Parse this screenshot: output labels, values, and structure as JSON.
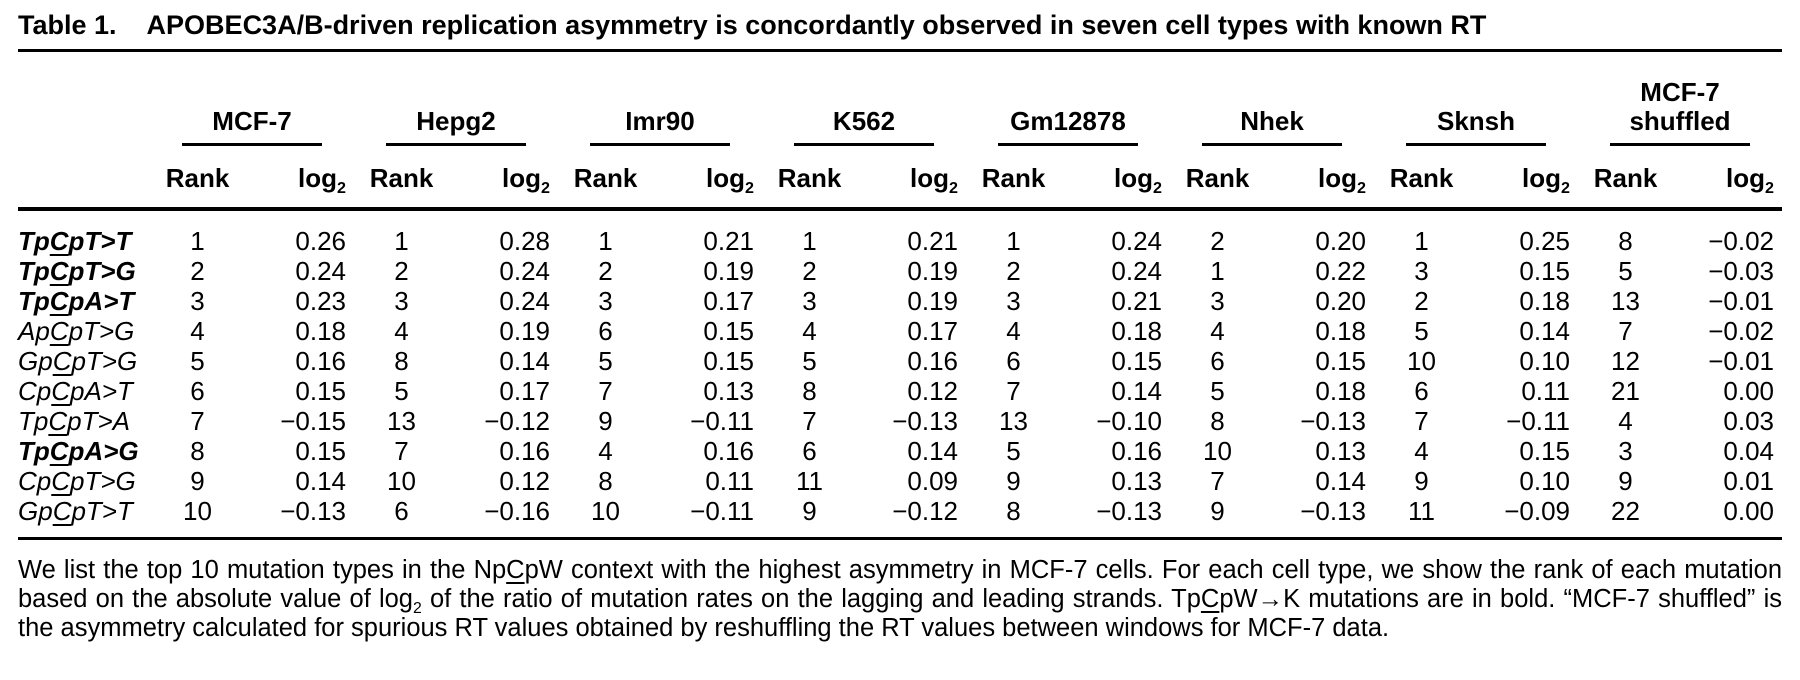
{
  "title": {
    "label": "Table 1.",
    "text": "APOBEC3A/B-driven replication asymmetry is concordantly observed in seven cell types with known RT"
  },
  "table": {
    "groups": [
      {
        "name": "MCF-7"
      },
      {
        "name": "Hepg2"
      },
      {
        "name": "Imr90"
      },
      {
        "name": "K562"
      },
      {
        "name": "Gm12878"
      },
      {
        "name": "Nhek"
      },
      {
        "name": "Sknsh"
      },
      {
        "name": "MCF-7\nshuffled"
      }
    ],
    "subheaders": {
      "rank": "Rank",
      "log_base": "log",
      "log_sub": "2"
    },
    "rows": [
      {
        "bold": true,
        "label": {
          "pre": "Tp",
          "c": "C",
          "post": "pT>T"
        },
        "cells": [
          {
            "rank": "1",
            "log2": "0.26"
          },
          {
            "rank": "1",
            "log2": "0.28"
          },
          {
            "rank": "1",
            "log2": "0.21"
          },
          {
            "rank": "1",
            "log2": "0.21"
          },
          {
            "rank": "1",
            "log2": "0.24"
          },
          {
            "rank": "2",
            "log2": "0.20"
          },
          {
            "rank": "1",
            "log2": "0.25"
          },
          {
            "rank": "8",
            "log2": "−0.02"
          }
        ]
      },
      {
        "bold": true,
        "label": {
          "pre": "Tp",
          "c": "C",
          "post": "pT>G"
        },
        "cells": [
          {
            "rank": "2",
            "log2": "0.24"
          },
          {
            "rank": "2",
            "log2": "0.24"
          },
          {
            "rank": "2",
            "log2": "0.19"
          },
          {
            "rank": "2",
            "log2": "0.19"
          },
          {
            "rank": "2",
            "log2": "0.24"
          },
          {
            "rank": "1",
            "log2": "0.22"
          },
          {
            "rank": "3",
            "log2": "0.15"
          },
          {
            "rank": "5",
            "log2": "−0.03"
          }
        ]
      },
      {
        "bold": true,
        "label": {
          "pre": "Tp",
          "c": "C",
          "post": "pA>T"
        },
        "cells": [
          {
            "rank": "3",
            "log2": "0.23"
          },
          {
            "rank": "3",
            "log2": "0.24"
          },
          {
            "rank": "3",
            "log2": "0.17"
          },
          {
            "rank": "3",
            "log2": "0.19"
          },
          {
            "rank": "3",
            "log2": "0.21"
          },
          {
            "rank": "3",
            "log2": "0.20"
          },
          {
            "rank": "2",
            "log2": "0.18"
          },
          {
            "rank": "13",
            "log2": "−0.01"
          }
        ]
      },
      {
        "bold": false,
        "label": {
          "pre": "Ap",
          "c": "C",
          "post": "pT>G"
        },
        "cells": [
          {
            "rank": "4",
            "log2": "0.18"
          },
          {
            "rank": "4",
            "log2": "0.19"
          },
          {
            "rank": "6",
            "log2": "0.15"
          },
          {
            "rank": "4",
            "log2": "0.17"
          },
          {
            "rank": "4",
            "log2": "0.18"
          },
          {
            "rank": "4",
            "log2": "0.18"
          },
          {
            "rank": "5",
            "log2": "0.14"
          },
          {
            "rank": "7",
            "log2": "−0.02"
          }
        ]
      },
      {
        "bold": false,
        "label": {
          "pre": "Gp",
          "c": "C",
          "post": "pT>G"
        },
        "cells": [
          {
            "rank": "5",
            "log2": "0.16"
          },
          {
            "rank": "8",
            "log2": "0.14"
          },
          {
            "rank": "5",
            "log2": "0.15"
          },
          {
            "rank": "5",
            "log2": "0.16"
          },
          {
            "rank": "6",
            "log2": "0.15"
          },
          {
            "rank": "6",
            "log2": "0.15"
          },
          {
            "rank": "10",
            "log2": "0.10"
          },
          {
            "rank": "12",
            "log2": "−0.01"
          }
        ]
      },
      {
        "bold": false,
        "label": {
          "pre": "Cp",
          "c": "C",
          "post": "pA>T"
        },
        "cells": [
          {
            "rank": "6",
            "log2": "0.15"
          },
          {
            "rank": "5",
            "log2": "0.17"
          },
          {
            "rank": "7",
            "log2": "0.13"
          },
          {
            "rank": "8",
            "log2": "0.12"
          },
          {
            "rank": "7",
            "log2": "0.14"
          },
          {
            "rank": "5",
            "log2": "0.18"
          },
          {
            "rank": "6",
            "log2": "0.11"
          },
          {
            "rank": "21",
            "log2": "0.00"
          }
        ]
      },
      {
        "bold": false,
        "label": {
          "pre": "Tp",
          "c": "C",
          "post": "pT>A"
        },
        "cells": [
          {
            "rank": "7",
            "log2": "−0.15"
          },
          {
            "rank": "13",
            "log2": "−0.12"
          },
          {
            "rank": "9",
            "log2": "−0.11"
          },
          {
            "rank": "7",
            "log2": "−0.13"
          },
          {
            "rank": "13",
            "log2": "−0.10"
          },
          {
            "rank": "8",
            "log2": "−0.13"
          },
          {
            "rank": "7",
            "log2": "−0.11"
          },
          {
            "rank": "4",
            "log2": "0.03"
          }
        ]
      },
      {
        "bold": true,
        "label": {
          "pre": "Tp",
          "c": "C",
          "post": "pA>G"
        },
        "cells": [
          {
            "rank": "8",
            "log2": "0.15"
          },
          {
            "rank": "7",
            "log2": "0.16"
          },
          {
            "rank": "4",
            "log2": "0.16"
          },
          {
            "rank": "6",
            "log2": "0.14"
          },
          {
            "rank": "5",
            "log2": "0.16"
          },
          {
            "rank": "10",
            "log2": "0.13"
          },
          {
            "rank": "4",
            "log2": "0.15"
          },
          {
            "rank": "3",
            "log2": "0.04"
          }
        ]
      },
      {
        "bold": false,
        "label": {
          "pre": "Cp",
          "c": "C",
          "post": "pT>G"
        },
        "cells": [
          {
            "rank": "9",
            "log2": "0.14"
          },
          {
            "rank": "10",
            "log2": "0.12"
          },
          {
            "rank": "8",
            "log2": "0.11"
          },
          {
            "rank": "11",
            "log2": "0.09"
          },
          {
            "rank": "9",
            "log2": "0.13"
          },
          {
            "rank": "7",
            "log2": "0.14"
          },
          {
            "rank": "9",
            "log2": "0.10"
          },
          {
            "rank": "9",
            "log2": "0.01"
          }
        ]
      },
      {
        "bold": false,
        "label": {
          "pre": "Gp",
          "c": "C",
          "post": "pT>T"
        },
        "cells": [
          {
            "rank": "10",
            "log2": "−0.13"
          },
          {
            "rank": "6",
            "log2": "−0.16"
          },
          {
            "rank": "10",
            "log2": "−0.11"
          },
          {
            "rank": "9",
            "log2": "−0.12"
          },
          {
            "rank": "8",
            "log2": "−0.13"
          },
          {
            "rank": "9",
            "log2": "−0.13"
          },
          {
            "rank": "11",
            "log2": "−0.09"
          },
          {
            "rank": "22",
            "log2": "0.00"
          }
        ]
      }
    ]
  },
  "footnote": {
    "segments": [
      {
        "t": "We list the top 10 mutation types in the Np"
      },
      {
        "t": "C",
        "u": true
      },
      {
        "t": "pW context with the highest asymmetry in MCF-7 cells. For each cell type, we show the rank of each mutation based on the absolute value of log"
      },
      {
        "t": "2",
        "sub": true
      },
      {
        "t": " of the ratio of mutation rates on the lagging and leading strands. Tp"
      },
      {
        "t": "C",
        "u": true
      },
      {
        "t": "pW→K mutations are in bold. “MCF-7 shuffled” is the asymmetry calculated for spurious RT values obtained by reshuffling the RT values between windows for MCF-7 data."
      }
    ]
  }
}
